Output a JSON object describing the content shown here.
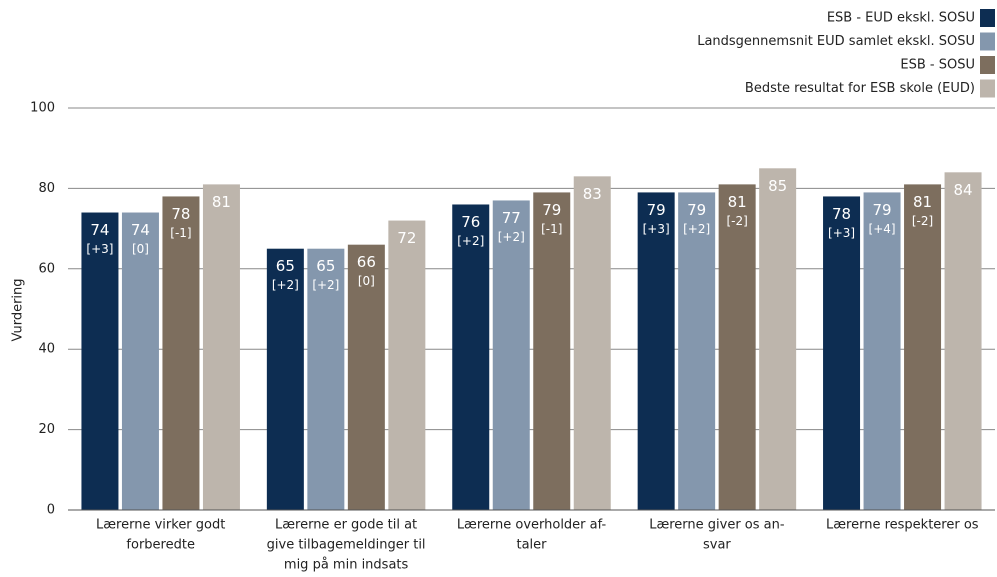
{
  "chart_data": {
    "type": "bar",
    "y_label": "Vurdering",
    "categories": [
      [
        "Lærerne virker godt",
        "forberedte"
      ],
      [
        "Lærerne er gode til at",
        "give tilbagemeldinger til",
        "mig på min indsats"
      ],
      [
        "Lærerne overholder af-",
        "taler"
      ],
      [
        "Lærerne giver os an-",
        "svar"
      ],
      [
        "Lærerne respekterer os"
      ]
    ],
    "series": [
      {
        "name": "ESB - EUD ekskl. SOSU",
        "color": "#0d2d52",
        "values": [
          74,
          65,
          76,
          79,
          78
        ],
        "change_labels": [
          "[+3]",
          "[+2]",
          "[+2]",
          "[+3]",
          "[+3]"
        ]
      },
      {
        "name": "Landsgennemsnit EUD samlet ekskl. SOSU",
        "color": "#8497ad",
        "values": [
          74,
          65,
          77,
          79,
          79
        ],
        "change_labels": [
          "[0]",
          "[+2]",
          "[+2]",
          "[+2]",
          "[+4]"
        ]
      },
      {
        "name": "ESB - SOSU",
        "color": "#7d6e5e",
        "values": [
          78,
          66,
          79,
          81,
          81
        ],
        "change_labels": [
          "[-1]",
          "[0]",
          "[-1]",
          "[-2]",
          "[-2]"
        ]
      },
      {
        "name": "Bedste resultat for ESB skole (EUD)",
        "color": "#bdb5ac",
        "values": [
          81,
          72,
          83,
          85,
          84
        ]
      }
    ],
    "ylim": [
      0,
      100
    ],
    "yticks": [
      0,
      20,
      40,
      60,
      80,
      100
    ],
    "grid": true,
    "legend": "top-right"
  }
}
